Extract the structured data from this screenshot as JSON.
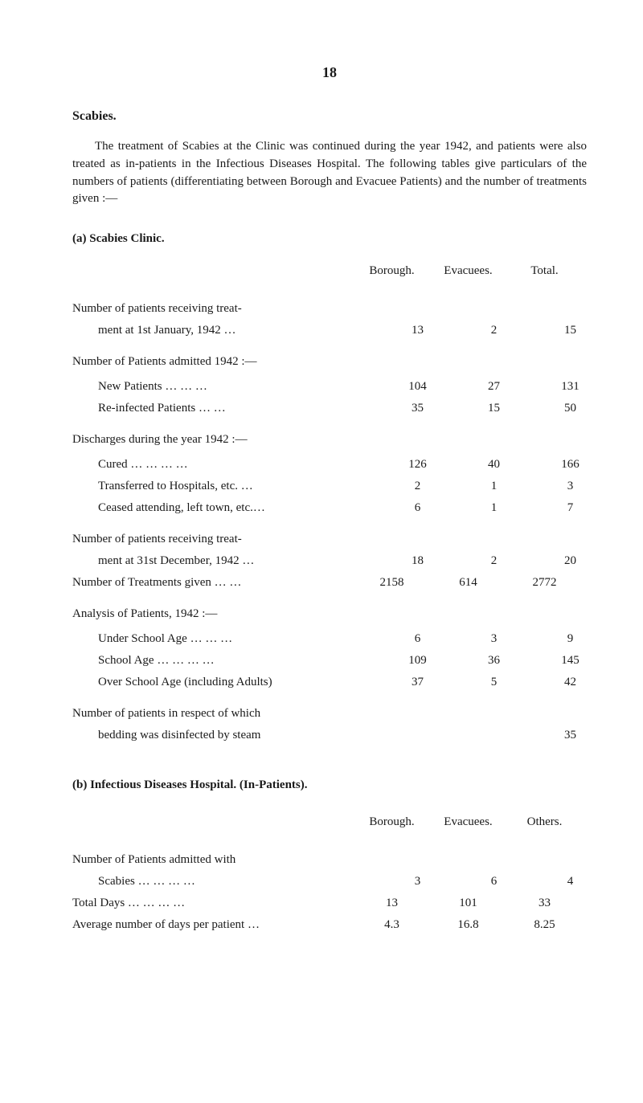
{
  "pageNumber": "18",
  "title": "Scabies.",
  "intro": "The treatment of Scabies at the Clinic was continued during the year 1942, and patients were also treated as in-patients in the Infectious Diseases Hospital. The following tables give particulars of the numbers of patients (differentiating between Borough and Evacuee Patients) and the number of treatments given :—",
  "sectionA": {
    "heading": "(a) Scabies Clinic.",
    "cols": {
      "a": "Borough.",
      "b": "Evacuees.",
      "c": "Total."
    },
    "rows": [
      {
        "label": "Number of patients receiving treat-ment at 1st January, 1942    …",
        "a": "13",
        "b": "2",
        "c": "15",
        "twoLine": true,
        "break": "Number of patients receiving treat-",
        "rest": "ment at 1st January, 1942    …"
      },
      {
        "label": "Number of Patients admitted 1942 :—",
        "header": true
      },
      {
        "label": "New Patients    …    …    …",
        "a": "104",
        "b": "27",
        "c": "131",
        "indent": true
      },
      {
        "label": "Re-infected Patients    …    …",
        "a": "35",
        "b": "15",
        "c": "50",
        "indent": true
      },
      {
        "label": "Discharges during the year 1942 :—",
        "header": true
      },
      {
        "label": "Cured    …    …    …    …",
        "a": "126",
        "b": "40",
        "c": "166",
        "indent": true
      },
      {
        "label": "Transferred to Hospitals, etc.    …",
        "a": "2",
        "b": "1",
        "c": "3",
        "indent": true
      },
      {
        "label": "Ceased attending, left town, etc.…",
        "a": "6",
        "b": "1",
        "c": "7",
        "indent": true
      },
      {
        "label": "Number of patients receiving treat-ment at 31st December, 1942    …",
        "a": "18",
        "b": "2",
        "c": "20",
        "twoLine": true,
        "break": "Number of patients receiving treat-",
        "rest": "ment at 31st December, 1942    …"
      },
      {
        "label": "Number of Treatments given …    …",
        "a": "2158",
        "b": "614",
        "c": "2772"
      },
      {
        "label": "Analysis of Patients, 1942 :—",
        "header": true
      },
      {
        "label": "Under School Age …    …    …",
        "a": "6",
        "b": "3",
        "c": "9",
        "indent": true
      },
      {
        "label": "School Age …    …    …    …",
        "a": "109",
        "b": "36",
        "c": "145",
        "indent": true
      },
      {
        "label": "Over School Age (including Adults)",
        "a": "37",
        "b": "5",
        "c": "42",
        "indent": true
      },
      {
        "label": "Number of patients in respect of which bedding was disinfected by steam",
        "a": "",
        "b": "",
        "c": "35",
        "twoLine": true,
        "break": "Number of patients in respect of which",
        "rest": "bedding was disinfected by steam"
      }
    ]
  },
  "sectionB": {
    "heading": "(b) Infectious Diseases Hospital.  (In-Patients).",
    "cols": {
      "a": "Borough.",
      "b": "Evacuees.",
      "c": "Others."
    },
    "rows": [
      {
        "label": "Number of Patients admitted with Scabies    …    …    …    …",
        "a": "3",
        "b": "6",
        "c": "4",
        "twoLine": true,
        "break": "Number of Patients admitted with",
        "rest": "Scabies    …    …    …    …"
      },
      {
        "label": "Total Days    …    …    …    …",
        "a": "13",
        "b": "101",
        "c": "33"
      },
      {
        "label": "Average number of days per patient …",
        "a": "4.3",
        "b": "16.8",
        "c": "8.25"
      }
    ]
  }
}
